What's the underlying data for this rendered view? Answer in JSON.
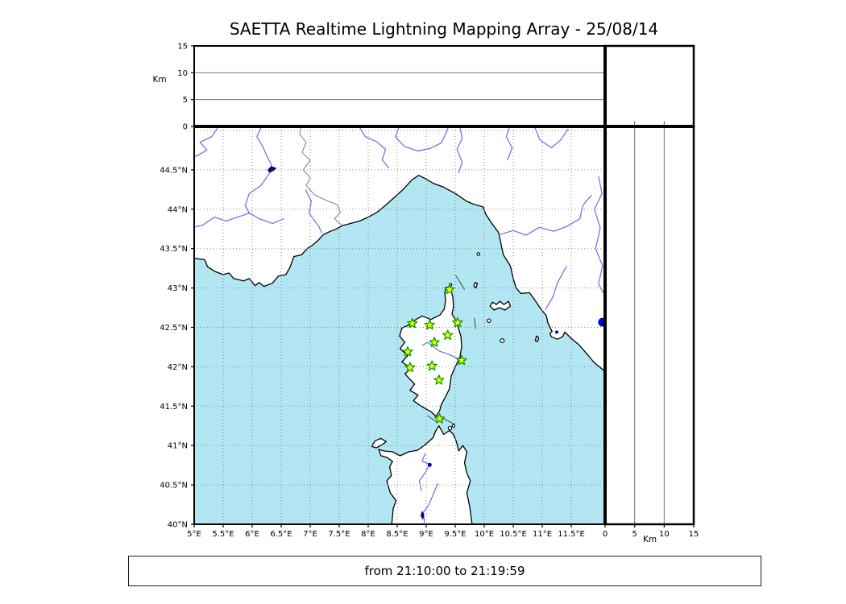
{
  "title": "SAETTA Realtime Lightning Mapping Array - 25/08/14",
  "footer": {
    "time_range": "from 21:10:00 to 21:19:59"
  },
  "labels": {
    "km_top": "Km",
    "km_right": "Km"
  },
  "colors": {
    "sea": "#B2E6F2",
    "land": "#FFFFFF",
    "coast": "#000000",
    "river": "#6A6AEC",
    "border": "#808080",
    "lake": "#0000CD",
    "lake_dark": "#000080",
    "grid": "#8A8A8A",
    "panel_grid": "#777777",
    "station_fill": "#FFFF00",
    "station_edge": "#00A000",
    "frame": "#000000"
  },
  "chart_data": {
    "type": "scatter",
    "title": "SAETTA Realtime Lightning Mapping Array - 25/08/14",
    "time_window": "from 21:10:00 to 21:19:59",
    "map_panel": {
      "lon_range": [
        5.0,
        12.08
      ],
      "lat_range": [
        40.0,
        45.05
      ],
      "grid": "dotted 0.5 degree",
      "lon_ticks": [
        {
          "v": 5.0,
          "label": "5°E"
        },
        {
          "v": 5.5,
          "label": "5.5°E"
        },
        {
          "v": 6.0,
          "label": "6°E"
        },
        {
          "v": 6.5,
          "label": "6.5°E"
        },
        {
          "v": 7.0,
          "label": "7°E"
        },
        {
          "v": 7.5,
          "label": "7.5°E"
        },
        {
          "v": 8.0,
          "label": "8°E"
        },
        {
          "v": 8.5,
          "label": "8.5°E"
        },
        {
          "v": 9.0,
          "label": "9°E"
        },
        {
          "v": 9.5,
          "label": "9.5°E"
        },
        {
          "v": 10.0,
          "label": "10°E"
        },
        {
          "v": 10.5,
          "label": "10.5°E"
        },
        {
          "v": 11.0,
          "label": "11°E"
        },
        {
          "v": 11.5,
          "label": "11.5°E"
        }
      ],
      "lat_ticks": [
        {
          "v": 40.0,
          "label": "40°N"
        },
        {
          "v": 40.5,
          "label": "40.5°N"
        },
        {
          "v": 41.0,
          "label": "41°N"
        },
        {
          "v": 41.5,
          "label": "41.5°N"
        },
        {
          "v": 42.0,
          "label": "42°N"
        },
        {
          "v": 42.5,
          "label": "42.5°N"
        },
        {
          "v": 43.0,
          "label": "43°N"
        },
        {
          "v": 43.5,
          "label": "43.5°N"
        },
        {
          "v": 44.0,
          "label": "44°N"
        },
        {
          "v": 44.5,
          "label": "44.5°N"
        }
      ]
    },
    "altitude_panels": {
      "axis_label": "Km",
      "range_km": [
        0,
        15
      ],
      "ticks": [
        {
          "v": 0,
          "label": "0"
        },
        {
          "v": 5,
          "label": "5"
        },
        {
          "v": 10,
          "label": "10"
        },
        {
          "v": 15,
          "label": "15"
        }
      ],
      "gridlines_km": [
        5,
        10
      ],
      "points": []
    },
    "stations": [
      {
        "lon": 9.4,
        "lat": 42.98
      },
      {
        "lon": 8.76,
        "lat": 42.55
      },
      {
        "lon": 9.06,
        "lat": 42.53
      },
      {
        "lon": 9.54,
        "lat": 42.56
      },
      {
        "lon": 9.37,
        "lat": 42.4
      },
      {
        "lon": 9.14,
        "lat": 42.31
      },
      {
        "lon": 8.68,
        "lat": 42.19
      },
      {
        "lon": 9.61,
        "lat": 42.08
      },
      {
        "lon": 8.72,
        "lat": 41.99
      },
      {
        "lon": 9.1,
        "lat": 42.01
      },
      {
        "lon": 9.22,
        "lat": 41.83
      },
      {
        "lon": 9.23,
        "lat": 41.34
      }
    ],
    "station_marker": "yellow star with green edge",
    "lightning_points": []
  }
}
